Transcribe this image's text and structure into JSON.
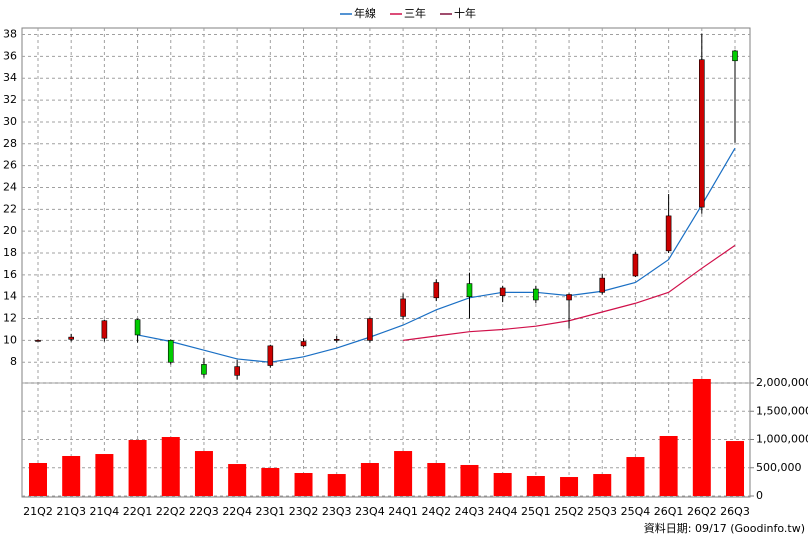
{
  "chart_data": {
    "type": "candlestick",
    "categories": [
      "21Q2",
      "21Q3",
      "21Q4",
      "22Q1",
      "22Q2",
      "22Q3",
      "22Q4",
      "23Q1",
      "23Q2",
      "23Q3",
      "23Q4",
      "24Q1",
      "24Q2",
      "24Q3",
      "24Q4",
      "25Q1",
      "25Q2",
      "25Q3",
      "25Q4",
      "26Q1",
      "26Q2",
      "26Q3"
    ],
    "open": [
      10.0,
      10.1,
      10.2,
      11.9,
      10.0,
      7.8,
      6.8,
      7.7,
      9.5,
      10.0,
      10.0,
      12.2,
      13.9,
      15.2,
      14.1,
      14.7,
      13.7,
      14.4,
      15.9,
      18.2,
      22.2,
      36.5
    ],
    "high": [
      10.1,
      10.6,
      11.9,
      12.0,
      10.1,
      8.4,
      8.2,
      9.6,
      10.2,
      10.4,
      12.1,
      14.3,
      15.6,
      16.2,
      15.0,
      15.0,
      14.3,
      16.1,
      18.1,
      23.4,
      38.1,
      36.6
    ],
    "low": [
      9.9,
      9.9,
      9.9,
      9.8,
      7.8,
      6.6,
      6.4,
      7.5,
      9.4,
      9.8,
      9.8,
      11.9,
      13.6,
      12.0,
      13.5,
      13.4,
      11.1,
      14.2,
      15.8,
      18.0,
      21.6,
      28.1
    ],
    "close": [
      10.0,
      10.3,
      11.8,
      10.5,
      8.0,
      6.9,
      7.6,
      9.5,
      9.9,
      10.1,
      12.0,
      13.8,
      15.3,
      14.0,
      14.8,
      13.7,
      14.2,
      15.7,
      17.9,
      21.4,
      35.7,
      35.6
    ],
    "up_color": "#cc0000",
    "down_color": "#00cc00",
    "series": [
      {
        "name": "年線",
        "color": "#1a6fc4",
        "values": [
          null,
          null,
          null,
          10.5,
          9.9,
          9.1,
          8.3,
          8.0,
          8.5,
          9.3,
          10.3,
          11.4,
          12.8,
          13.9,
          14.4,
          14.4,
          14.1,
          14.5,
          15.3,
          17.4,
          22.4,
          27.6
        ]
      },
      {
        "name": "三年",
        "color": "#d0104a",
        "values": [
          null,
          null,
          null,
          null,
          null,
          null,
          null,
          null,
          null,
          null,
          null,
          10.0,
          10.4,
          10.8,
          11.0,
          11.3,
          11.8,
          12.6,
          13.4,
          14.4,
          16.6,
          18.7
        ]
      },
      {
        "name": "十年",
        "color": "#80103c",
        "values": [
          null,
          null,
          null,
          null,
          null,
          null,
          null,
          null,
          null,
          null,
          null,
          null,
          null,
          null,
          null,
          null,
          null,
          null,
          null,
          null,
          null,
          null
        ]
      }
    ],
    "ylim": [
      6.1,
      38.6
    ],
    "yticks": [
      8,
      10,
      12,
      14,
      16,
      18,
      20,
      22,
      24,
      26,
      28,
      30,
      32,
      34,
      36,
      38
    ],
    "grid": true,
    "volume": {
      "color": "#ff0000",
      "values": [
        584000,
        708000,
        743000,
        991000,
        1044000,
        796000,
        566000,
        496000,
        407000,
        389000,
        584000,
        796000,
        584000,
        549000,
        407000,
        354000,
        336000,
        389000,
        690000,
        1062000,
        2071000,
        973000
      ],
      "y2lim": [
        0,
        2000000
      ],
      "y2ticks": [
        0,
        {
          "value": 500000,
          "label": "500,000"
        },
        {
          "value": 1000000,
          "label": "1,000,000"
        },
        {
          "value": 1500000,
          "label": "1,500,000"
        },
        {
          "value": 2000000,
          "label": "2,000,000"
        }
      ]
    },
    "footer": "資料日期: 09/17 (Goodinfo.tw)"
  }
}
